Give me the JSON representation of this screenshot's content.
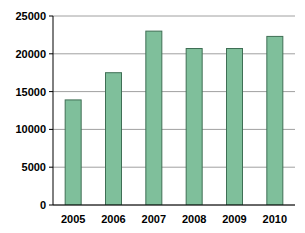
{
  "chart_data": {
    "type": "bar",
    "categories": [
      "2005",
      "2006",
      "2007",
      "2008",
      "2009",
      "2010"
    ],
    "values": [
      13900,
      17500,
      23000,
      20700,
      20700,
      22300
    ],
    "color": "#7fbf9b",
    "ylim": [
      0,
      25000
    ],
    "yticks": [
      0,
      5000,
      10000,
      15000,
      20000,
      25000
    ],
    "grid": true
  }
}
